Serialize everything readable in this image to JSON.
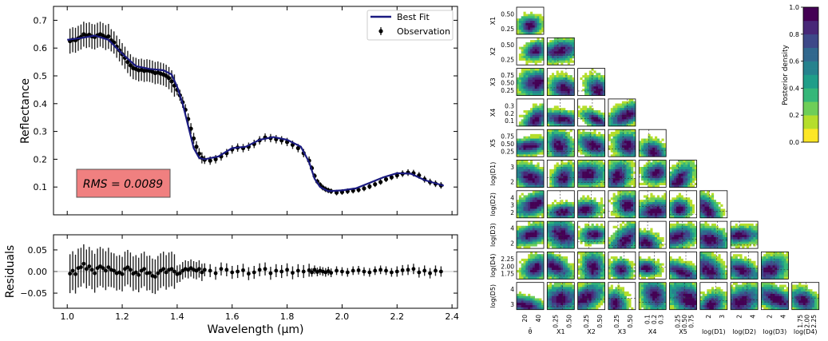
{
  "chart_data": [
    {
      "type": "line",
      "panel": "spectrum",
      "xlabel": "",
      "ylabel": "Reflectance",
      "xlim": [
        0.95,
        2.42
      ],
      "ylim": [
        0.0,
        0.75
      ],
      "yticks": [
        0.1,
        0.2,
        0.3,
        0.4,
        0.5,
        0.6,
        0.7
      ],
      "ytick_labels": [
        "0.1",
        "0.2",
        "0.3",
        "0.4",
        "0.5",
        "0.6",
        "0.7"
      ],
      "legend": {
        "placement": "top-right",
        "entries": [
          "Best Fit",
          "Observation"
        ]
      },
      "annotation": "RMS = 0.0089",
      "colors": {
        "best_fit": "#1a1a80",
        "observation": "#000000",
        "rms_box": "#f08080"
      },
      "series": [
        {
          "name": "Best Fit",
          "x": [
            1.0,
            1.05,
            1.1,
            1.15,
            1.2,
            1.25,
            1.3,
            1.35,
            1.38,
            1.4,
            1.42,
            1.44,
            1.46,
            1.48,
            1.5,
            1.55,
            1.6,
            1.65,
            1.7,
            1.75,
            1.8,
            1.85,
            1.88,
            1.9,
            1.92,
            1.95,
            2.0,
            2.05,
            2.1,
            2.15,
            2.2,
            2.25,
            2.3,
            2.37
          ],
          "y": [
            0.63,
            0.636,
            0.645,
            0.63,
            0.58,
            0.535,
            0.525,
            0.52,
            0.505,
            0.46,
            0.4,
            0.32,
            0.24,
            0.205,
            0.2,
            0.21,
            0.24,
            0.245,
            0.27,
            0.28,
            0.27,
            0.245,
            0.19,
            0.13,
            0.1,
            0.085,
            0.088,
            0.095,
            0.115,
            0.135,
            0.15,
            0.148,
            0.125,
            0.105
          ]
        },
        {
          "name": "Observation",
          "x": [
            1.01,
            1.02,
            1.03,
            1.04,
            1.05,
            1.06,
            1.07,
            1.08,
            1.09,
            1.1,
            1.11,
            1.12,
            1.13,
            1.14,
            1.15,
            1.16,
            1.17,
            1.18,
            1.19,
            1.2,
            1.21,
            1.22,
            1.23,
            1.24,
            1.25,
            1.26,
            1.27,
            1.28,
            1.29,
            1.3,
            1.31,
            1.32,
            1.33,
            1.34,
            1.35,
            1.36,
            1.37,
            1.38,
            1.39,
            1.4,
            1.41,
            1.42,
            1.43,
            1.44,
            1.45,
            1.46,
            1.47,
            1.48,
            1.49,
            1.5,
            1.52,
            1.54,
            1.56,
            1.58,
            1.6,
            1.62,
            1.64,
            1.66,
            1.68,
            1.7,
            1.72,
            1.74,
            1.76,
            1.78,
            1.8,
            1.82,
            1.84,
            1.86,
            1.88,
            1.89,
            1.9,
            1.91,
            1.92,
            1.93,
            1.94,
            1.95,
            1.96,
            1.98,
            2.0,
            2.02,
            2.04,
            2.06,
            2.08,
            2.1,
            2.12,
            2.14,
            2.16,
            2.18,
            2.2,
            2.22,
            2.24,
            2.26,
            2.28,
            2.3,
            2.32,
            2.34,
            2.36
          ],
          "y": [
            0.625,
            0.63,
            0.628,
            0.635,
            0.64,
            0.65,
            0.645,
            0.648,
            0.642,
            0.64,
            0.646,
            0.65,
            0.645,
            0.638,
            0.642,
            0.628,
            0.62,
            0.605,
            0.592,
            0.578,
            0.565,
            0.55,
            0.538,
            0.528,
            0.525,
            0.52,
            0.522,
            0.518,
            0.52,
            0.518,
            0.515,
            0.51,
            0.512,
            0.508,
            0.505,
            0.5,
            0.492,
            0.48,
            0.465,
            0.45,
            0.43,
            0.405,
            0.378,
            0.345,
            0.31,
            0.275,
            0.245,
            0.22,
            0.205,
            0.198,
            0.195,
            0.2,
            0.21,
            0.222,
            0.235,
            0.242,
            0.24,
            0.245,
            0.255,
            0.268,
            0.278,
            0.276,
            0.272,
            0.268,
            0.262,
            0.252,
            0.24,
            0.222,
            0.195,
            0.168,
            0.14,
            0.12,
            0.108,
            0.098,
            0.092,
            0.088,
            0.085,
            0.08,
            0.082,
            0.085,
            0.087,
            0.09,
            0.095,
            0.102,
            0.11,
            0.118,
            0.128,
            0.135,
            0.142,
            0.148,
            0.152,
            0.15,
            0.142,
            0.128,
            0.118,
            0.112,
            0.106
          ],
          "err": [
            0.045,
            0.045,
            0.045,
            0.045,
            0.045,
            0.045,
            0.045,
            0.045,
            0.045,
            0.045,
            0.045,
            0.045,
            0.045,
            0.045,
            0.045,
            0.04,
            0.04,
            0.04,
            0.04,
            0.04,
            0.04,
            0.04,
            0.04,
            0.04,
            0.04,
            0.04,
            0.04,
            0.04,
            0.04,
            0.04,
            0.04,
            0.04,
            0.04,
            0.04,
            0.04,
            0.04,
            0.04,
            0.04,
            0.04,
            0.02,
            0.02,
            0.02,
            0.02,
            0.02,
            0.02,
            0.02,
            0.02,
            0.02,
            0.02,
            0.015,
            0.015,
            0.015,
            0.015,
            0.015,
            0.015,
            0.015,
            0.015,
            0.015,
            0.015,
            0.015,
            0.015,
            0.015,
            0.015,
            0.015,
            0.015,
            0.015,
            0.015,
            0.015,
            0.015,
            0.01,
            0.01,
            0.01,
            0.01,
            0.01,
            0.01,
            0.01,
            0.01,
            0.01,
            0.01,
            0.01,
            0.01,
            0.01,
            0.01,
            0.01,
            0.01,
            0.01,
            0.01,
            0.01,
            0.012,
            0.012,
            0.012,
            0.012,
            0.012,
            0.012,
            0.012,
            0.012,
            0.012
          ]
        }
      ]
    },
    {
      "type": "scatter",
      "panel": "residuals",
      "xlabel": "Wavelength (µm)",
      "ylabel": "Residuals",
      "xlim": [
        0.95,
        2.42
      ],
      "ylim": [
        -0.085,
        0.085
      ],
      "xticks": [
        1.0,
        1.2,
        1.4,
        1.6,
        1.8,
        2.0,
        2.2,
        2.4
      ],
      "xtick_labels": [
        "1.0",
        "1.2",
        "1.4",
        "1.6",
        "1.8",
        "2.0",
        "2.2",
        "2.4"
      ],
      "yticks": [
        -0.05,
        0.0,
        0.05
      ],
      "ytick_labels": [
        "−0.05",
        "0.00",
        "0.05"
      ],
      "series": [
        {
          "name": "",
          "x": [
            1.01,
            1.02,
            1.03,
            1.04,
            1.05,
            1.06,
            1.07,
            1.08,
            1.09,
            1.1,
            1.11,
            1.12,
            1.13,
            1.14,
            1.15,
            1.16,
            1.17,
            1.18,
            1.19,
            1.2,
            1.21,
            1.22,
            1.23,
            1.24,
            1.25,
            1.26,
            1.27,
            1.28,
            1.29,
            1.3,
            1.31,
            1.32,
            1.33,
            1.34,
            1.35,
            1.36,
            1.37,
            1.38,
            1.39,
            1.4,
            1.41,
            1.42,
            1.43,
            1.44,
            1.45,
            1.46,
            1.47,
            1.48,
            1.49,
            1.5,
            1.52,
            1.54,
            1.56,
            1.58,
            1.6,
            1.62,
            1.64,
            1.66,
            1.68,
            1.7,
            1.72,
            1.74,
            1.76,
            1.78,
            1.8,
            1.82,
            1.84,
            1.86,
            1.88,
            1.89,
            1.9,
            1.91,
            1.92,
            1.93,
            1.94,
            1.95,
            1.96,
            1.98,
            2.0,
            2.02,
            2.04,
            2.06,
            2.08,
            2.1,
            2.12,
            2.14,
            2.16,
            2.18,
            2.2,
            2.22,
            2.24,
            2.26,
            2.28,
            2.3,
            2.32,
            2.34,
            2.36
          ],
          "y": [
            -0.005,
            0.002,
            -0.006,
            0.008,
            0.01,
            0.018,
            0.006,
            0.012,
            0.004,
            -0.004,
            0.008,
            0.012,
            0.008,
            0.002,
            0.01,
            0.004,
            0.002,
            -0.004,
            -0.002,
            -0.006,
            0.006,
            0.01,
            0.004,
            -0.005,
            -0.002,
            -0.008,
            0.002,
            0.006,
            -0.004,
            -0.003,
            -0.01,
            -0.012,
            -0.004,
            0.002,
            0.006,
            -0.002,
            0.004,
            0.006,
            0.0,
            -0.006,
            -0.004,
            0.002,
            0.006,
            0.004,
            0.008,
            0.004,
            0.002,
            0.006,
            -0.002,
            0.004,
            0.002,
            -0.004,
            0.006,
            0.004,
            -0.002,
            0.0,
            0.003,
            -0.005,
            -0.002,
            0.004,
            0.006,
            -0.004,
            0.002,
            0.0,
            0.004,
            -0.003,
            0.002,
            0.0,
            0.003,
            -0.002,
            0.004,
            -0.001,
            0.002,
            0.0,
            -0.002,
            0.001,
            -0.003,
            0.002,
            0.0,
            -0.002,
            0.002,
            0.003,
            0.0,
            -0.002,
            0.002,
            0.004,
            0.002,
            -0.002,
            0.0,
            0.003,
            0.004,
            0.006,
            -0.002,
            0.002,
            -0.004,
            0.002,
            0.0
          ],
          "err": [
            0.045,
            0.045,
            0.045,
            0.045,
            0.045,
            0.045,
            0.045,
            0.045,
            0.045,
            0.045,
            0.045,
            0.045,
            0.045,
            0.045,
            0.045,
            0.04,
            0.04,
            0.04,
            0.04,
            0.04,
            0.04,
            0.04,
            0.04,
            0.04,
            0.04,
            0.04,
            0.04,
            0.04,
            0.04,
            0.04,
            0.04,
            0.04,
            0.04,
            0.04,
            0.04,
            0.04,
            0.04,
            0.04,
            0.04,
            0.02,
            0.02,
            0.02,
            0.02,
            0.02,
            0.02,
            0.02,
            0.02,
            0.02,
            0.02,
            0.015,
            0.015,
            0.015,
            0.015,
            0.015,
            0.015,
            0.015,
            0.015,
            0.015,
            0.015,
            0.015,
            0.015,
            0.015,
            0.015,
            0.015,
            0.015,
            0.015,
            0.015,
            0.015,
            0.015,
            0.01,
            0.01,
            0.01,
            0.01,
            0.01,
            0.01,
            0.01,
            0.01,
            0.01,
            0.01,
            0.01,
            0.01,
            0.01,
            0.01,
            0.01,
            0.01,
            0.01,
            0.01,
            0.01,
            0.012,
            0.012,
            0.012,
            0.012,
            0.012,
            0.012,
            0.012,
            0.012,
            0.012
          ]
        }
      ]
    },
    {
      "type": "heatmap",
      "panel": "corner",
      "rows": [
        {
          "label": "X1",
          "ticks": [
            "0.50",
            "0.25"
          ]
        },
        {
          "label": "X2",
          "ticks": [
            "0.50",
            "0.25"
          ]
        },
        {
          "label": "X3",
          "ticks": [
            "0.75",
            "0.50",
            "0.25"
          ]
        },
        {
          "label": "X4",
          "ticks": [
            "0.3",
            "0.2",
            "0.1"
          ]
        },
        {
          "label": "X5",
          "ticks": [
            "0.75",
            "0.50",
            "0.25"
          ]
        },
        {
          "label": "log(D1)",
          "ticks": [
            "3",
            "2"
          ]
        },
        {
          "label": "log(D2)",
          "ticks": [
            "4",
            "3",
            "2"
          ]
        },
        {
          "label": "log(D3)",
          "ticks": [
            "4",
            "2"
          ]
        },
        {
          "label": "log(D4)",
          "ticks": [
            "2.25",
            "2.00",
            "1.75"
          ]
        },
        {
          "label": "log(D5)",
          "ticks": [
            "4",
            "3"
          ]
        }
      ],
      "columns": [
        {
          "label": "θ̄",
          "ticks": [
            "20",
            "40"
          ]
        },
        {
          "label": "X1",
          "ticks": [
            "0.25",
            "0.50"
          ]
        },
        {
          "label": "X2",
          "ticks": [
            "0.25",
            "0.50"
          ]
        },
        {
          "label": "X3",
          "ticks": [
            "0.25",
            "0.50"
          ]
        },
        {
          "label": "X4",
          "ticks": [
            "0.1",
            "0.2",
            "0.3"
          ]
        },
        {
          "label": "X5",
          "ticks": [
            "0.25",
            "0.50",
            "0.75"
          ]
        },
        {
          "label": "log(D1)",
          "ticks": [
            "2",
            "3"
          ]
        },
        {
          "label": "log(D2)",
          "ticks": [
            "2",
            "4"
          ]
        },
        {
          "label": "log(D3)",
          "ticks": [
            "2",
            "4"
          ]
        },
        {
          "label": "log(D4)",
          "ticks": [
            "1.75",
            "2.00",
            "2.25"
          ]
        }
      ],
      "colorbar": {
        "label": "Posterior density",
        "range": [
          0.0,
          1.0
        ],
        "ticks": [
          0.0,
          0.2,
          0.4,
          0.6,
          0.8,
          1.0
        ],
        "tick_labels": [
          "0.0",
          "0.2",
          "0.4",
          "0.6",
          "0.8",
          "1.0"
        ],
        "colormap": [
          "#fde725",
          "#b5de2b",
          "#6ece58",
          "#35b779",
          "#1f9e89",
          "#26828e",
          "#31688e",
          "#3e4989",
          "#482878",
          "#440154"
        ]
      }
    }
  ]
}
